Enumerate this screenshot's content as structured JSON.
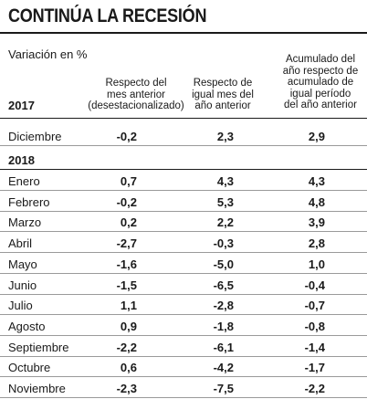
{
  "chart_data": {
    "type": "table",
    "title": "CONTINÚA LA RECESIÓN",
    "unit_label": "Variación en %",
    "columns": [
      "Respecto del mes anterior (desestacionalizado)",
      "Respecto de igual mes del año anterior",
      "Acumulado del año respecto de acumulado de igual período del año anterior"
    ],
    "column_lines": [
      [
        "Respecto del",
        "mes anterior",
        "(desestacionalizado)"
      ],
      [
        "Respecto de",
        "igual mes del",
        "año anterior"
      ],
      [
        "Acumulado del",
        "año respecto de",
        "acumulado de",
        "igual período",
        "del año anterior"
      ]
    ],
    "groups": [
      {
        "year": "2017",
        "rows": [
          {
            "label": "Diciembre",
            "values": [
              "-0,2",
              "2,3",
              "2,9"
            ]
          }
        ]
      },
      {
        "year": "2018",
        "rows": [
          {
            "label": "Enero",
            "values": [
              "0,7",
              "4,3",
              "4,3"
            ]
          },
          {
            "label": "Febrero",
            "values": [
              "-0,2",
              "5,3",
              "4,8"
            ]
          },
          {
            "label": "Marzo",
            "values": [
              "0,2",
              "2,2",
              "3,9"
            ]
          },
          {
            "label": "Abril",
            "values": [
              "-2,7",
              "-0,3",
              "2,8"
            ]
          },
          {
            "label": "Mayo",
            "values": [
              "-1,6",
              "-5,0",
              "1,0"
            ]
          },
          {
            "label": "Junio",
            "values": [
              "-1,5",
              "-6,5",
              "-0,4"
            ]
          },
          {
            "label": "Julio",
            "values": [
              "1,1",
              "-2,8",
              "-0,7"
            ]
          },
          {
            "label": "Agosto",
            "values": [
              "0,9",
              "-1,8",
              "-0,8"
            ]
          },
          {
            "label": "Septiembre",
            "values": [
              "-2,2",
              "-6,1",
              "-1,4"
            ]
          },
          {
            "label": "Octubre",
            "values": [
              "0,6",
              "-4,2",
              "-1,7"
            ]
          },
          {
            "label": "Noviembre",
            "values": [
              "-2,3",
              "-7,5",
              "-2,2"
            ]
          }
        ]
      }
    ]
  }
}
